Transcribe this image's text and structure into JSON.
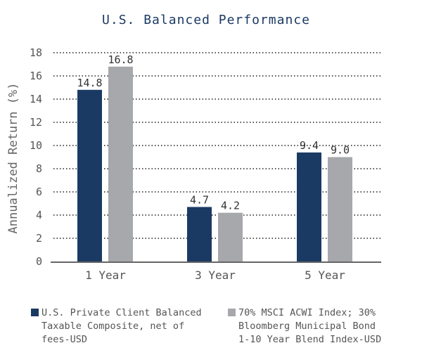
{
  "chart_data": {
    "type": "bar",
    "title": "U.S. Balanced Performance",
    "xlabel": "",
    "ylabel": "Annualized Return (%)",
    "ylim": [
      0,
      18
    ],
    "yticks": [
      0,
      2,
      4,
      6,
      8,
      10,
      12,
      14,
      16,
      18
    ],
    "grid": "horizontal dotted",
    "categories": [
      "1 Year",
      "3 Year",
      "5 Year"
    ],
    "series": [
      {
        "name": "U.S. Private Client Balanced Taxable Composite, net of fees-USD",
        "color": "#1b3a63",
        "values": [
          14.8,
          4.7,
          9.4
        ],
        "labels": [
          "14.8",
          "4.7",
          "9.4"
        ]
      },
      {
        "name": "70% MSCI ACWI Index; 30% Bloomberg Municipal Bond 1-10 Year Blend Index-USD",
        "color": "#a7a8ab",
        "values": [
          16.8,
          4.2,
          9.0
        ],
        "labels": [
          "16.8",
          "4.2",
          "9.0"
        ]
      }
    ],
    "legend_position": "bottom"
  }
}
